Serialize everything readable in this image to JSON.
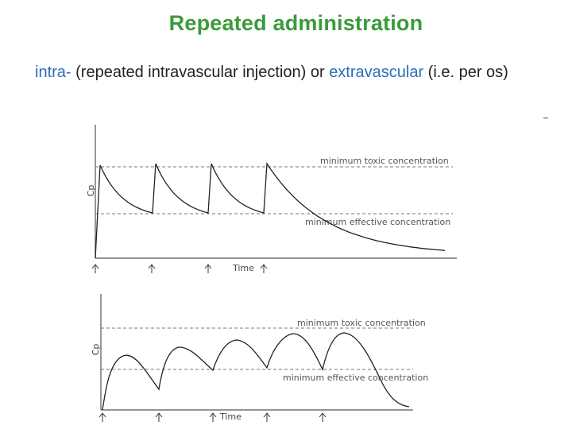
{
  "title": "Repeated administration",
  "subtitle": {
    "intra": "intra-",
    "part1": " (repeated intravascular injection) or ",
    "extra": "extravascular",
    "part2": " (i.e. per os)"
  },
  "colors": {
    "title": "#3a9b3a",
    "keyword": "#2a6db5",
    "text": "#222222",
    "curve": "#222222"
  },
  "chart_data": [
    {
      "type": "line",
      "ylabel": "Cp",
      "xlabel": "Time",
      "thresholds": {
        "toxic_label": "minimum toxic concentration",
        "effective_label": "minimum effective concentration"
      },
      "doses": 4
    },
    {
      "type": "line",
      "ylabel": "Cp",
      "xlabel": "Time",
      "thresholds": {
        "toxic_label": "minimum toxic concentration",
        "effective_label": "minimum effective concentration"
      },
      "doses": 5
    }
  ]
}
